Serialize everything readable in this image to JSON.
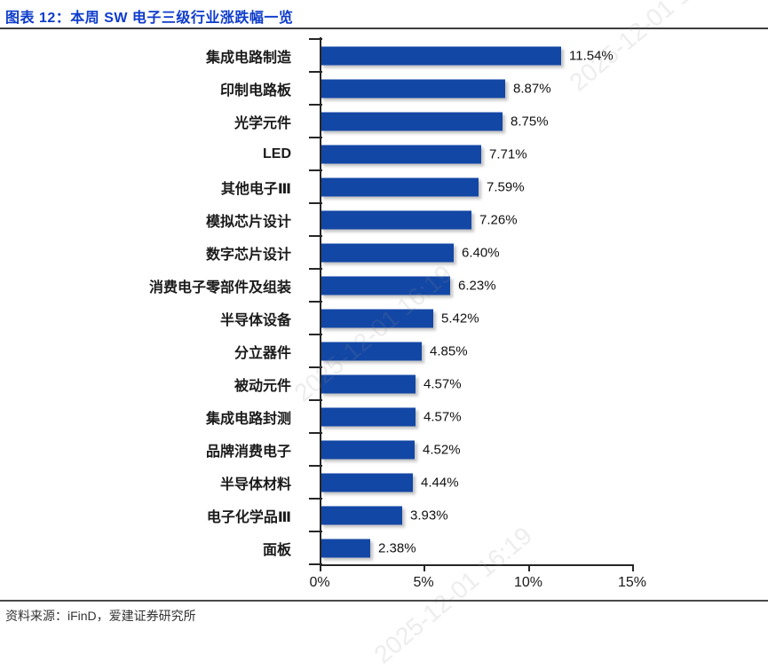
{
  "header": {
    "title": "图表 12：本周 SW 电子三级行业涨跌幅一览"
  },
  "footer": {
    "source": "资料来源：iFinD，爱建证券研究所"
  },
  "watermark": {
    "text": "2025-12-01 16:19"
  },
  "colors": {
    "bar": "#1347a5",
    "title": "#0d3bcb",
    "axis": "#262626"
  },
  "chart_data": {
    "type": "bar",
    "orientation": "horizontal",
    "title": "本周 SW 电子三级行业涨跌幅一览",
    "categories": [
      "集成电路制造",
      "印制电路板",
      "光学元件",
      "LED",
      "其他电子Ⅲ",
      "模拟芯片设计",
      "数字芯片设计",
      "消费电子零部件及组装",
      "半导体设备",
      "分立器件",
      "被动元件",
      "集成电路封测",
      "品牌消费电子",
      "半导体材料",
      "电子化学品Ⅲ",
      "面板"
    ],
    "values": [
      11.54,
      8.87,
      8.75,
      7.71,
      7.59,
      7.26,
      6.4,
      6.23,
      5.42,
      4.85,
      4.57,
      4.57,
      4.52,
      4.44,
      3.93,
      2.38
    ],
    "value_labels": [
      "11.54%",
      "8.87%",
      "8.75%",
      "7.71%",
      "7.59%",
      "7.26%",
      "6.40%",
      "6.23%",
      "5.42%",
      "4.85%",
      "4.57%",
      "4.57%",
      "4.52%",
      "4.44%",
      "3.93%",
      "2.38%"
    ],
    "xlabel": "",
    "ylabel": "",
    "xlim": [
      0,
      15
    ],
    "x_ticks": [
      0,
      5,
      10,
      15
    ],
    "x_tick_labels": [
      "0%",
      "5%",
      "10%",
      "15%"
    ],
    "grid": false,
    "legend": false,
    "bar_color": "#1347a5"
  }
}
